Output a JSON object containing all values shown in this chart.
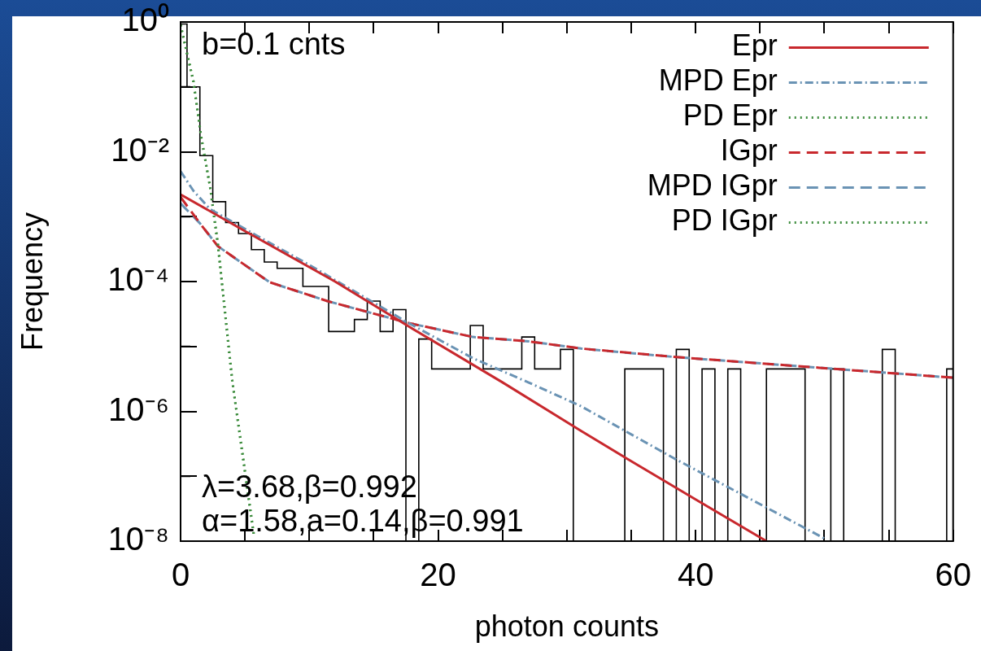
{
  "chart_data": {
    "type": "line",
    "xlabel": "photon counts",
    "ylabel": "Frequency",
    "log": true,
    "legend": "top right",
    "xlim": [
      0,
      60
    ],
    "ylim": [
      1e-08,
      1
    ],
    "xticks": [
      0,
      {
        "value": 5,
        "label": null
      },
      {
        "value": 10,
        "label": null
      },
      {
        "value": 15,
        "label": null
      },
      20,
      {
        "value": 25,
        "label": null
      },
      {
        "value": 30,
        "label": null
      },
      {
        "value": 35,
        "label": null
      },
      40,
      {
        "value": 45,
        "label": null
      },
      {
        "value": 50,
        "label": null
      },
      {
        "value": 55,
        "label": null
      },
      60
    ],
    "yticks": [
      {
        "value": 1e-08,
        "label": "10⁻⁸"
      },
      {
        "value": 1e-07,
        "label": null
      },
      {
        "value": 1e-06,
        "label": "10⁻⁶"
      },
      {
        "value": 1e-05,
        "label": null
      },
      {
        "value": 0.0001,
        "label": "10⁻⁴"
      },
      {
        "value": 0.001,
        "label": null
      },
      {
        "value": 0.01,
        "label": "10⁻²"
      },
      {
        "value": 0.1,
        "label": null
      },
      {
        "value": 1,
        "label": "10⁰"
      }
    ],
    "annotations": [
      "b=0.1 cnts",
      "λ=3.68,β=0.992",
      "α=1.58,a=0.14,β=0.991"
    ],
    "series": [
      {
        "type": "histogram",
        "color": "#000000",
        "bins": [
          0,
          0.5,
          1.5,
          2.5,
          3.5,
          4.5,
          5.5,
          6.5,
          7.5,
          8.5,
          9.5,
          10.5,
          11.5,
          12.5,
          13.5,
          14.5,
          15.5,
          16.5,
          17.5,
          18.5,
          19.5,
          20.5,
          21.5,
          22.5,
          23.5,
          24.5,
          25.5,
          26.5,
          27.5,
          28.5,
          29.5,
          30.5,
          31.5,
          32.5,
          33.5,
          34.5,
          35.5,
          36.5,
          37.5,
          38.5,
          39.5,
          40.5,
          41.5,
          42.5,
          43.5,
          44.5,
          45.5,
          46.5,
          47.5,
          48.5,
          49.5,
          50.5,
          51.5,
          52.5,
          53.5,
          54.5,
          55.5,
          56.5,
          57.5,
          58.5,
          59.5,
          60
        ],
        "values": [
          0.93,
          0.1,
          0.0087,
          0.0017,
          0.00081,
          0.00055,
          0.00031,
          0.0002,
          0.00016,
          0.00016,
          8.4e-05,
          8.4e-05,
          1.7e-05,
          1.7e-05,
          2.6e-05,
          5e-05,
          1.7e-05,
          3.7e-05,
          null,
          1.3e-05,
          4.5e-06,
          4.5e-06,
          4.5e-06,
          2.1e-05,
          4.5e-06,
          4.5e-06,
          4.5e-06,
          1.4e-05,
          4.5e-06,
          4.5e-06,
          9e-06,
          null,
          null,
          null,
          null,
          4.5e-06,
          4.5e-06,
          4.5e-06,
          null,
          9e-06,
          null,
          4.5e-06,
          null,
          4.5e-06,
          null,
          null,
          4.5e-06,
          4.5e-06,
          4.5e-06,
          null,
          null,
          4.5e-06,
          null,
          null,
          null,
          9e-06,
          null,
          null,
          null,
          null,
          4.5e-06
        ]
      },
      {
        "name": "Epr",
        "color": "#c8282d",
        "line_style": "solid",
        "x": [
          0,
          5,
          12,
          17.6,
          25,
          31.1,
          34.6,
          40,
          45.5
        ],
        "values": [
          0.0022,
          0.0006,
          0.0001,
          2.1e-05,
          2.8e-06,
          5e-07,
          1.9e-07,
          4.4e-08,
          1e-08
        ]
      },
      {
        "name": "MPD Epr",
        "color": "#6a93b4",
        "line_style": "dashdot",
        "x": [
          0,
          1,
          2.3,
          6,
          10,
          17.7,
          22.7,
          27,
          31.1,
          38.3,
          50
        ],
        "values": [
          0.005,
          0.0025,
          0.0013,
          0.0005,
          0.00018,
          2.3e-05,
          6.6e-06,
          2.8e-06,
          1.2e-06,
          1.9e-07,
          1.1e-08
        ]
      },
      {
        "name": "PD Epr",
        "color": "#3c8c3c",
        "line_style": "dotted",
        "x": [
          0,
          1,
          1.6,
          2.3,
          2.9,
          4,
          5.7
        ],
        "values": [
          0.9,
          0.12,
          0.017,
          0.0028,
          0.00037,
          3.1e-06,
          1.2e-08
        ]
      },
      {
        "name": "IGpr",
        "color": "#c8282d",
        "line_style": "dashed",
        "x": [
          0,
          1.5,
          2.9,
          6.9,
          11.4,
          17.7,
          22.7,
          27,
          31.1,
          38.3,
          49.6,
          60
        ],
        "values": [
          0.002,
          0.00079,
          0.00035,
          9.8e-05,
          5e-05,
          2.3e-05,
          1.4e-05,
          1.2e-05,
          9.3e-06,
          6.9e-06,
          4.7e-06,
          3.3e-06
        ]
      },
      {
        "name": "MPD IGpr",
        "color": "#6a93b4",
        "line_style": "dashed",
        "x": [
          0,
          1.5,
          2.9,
          6.9,
          11.4,
          17.7,
          22.7,
          27,
          31.1,
          38.3,
          49.6,
          60
        ],
        "values": [
          0.0016,
          0.00079,
          0.00035,
          9.8e-05,
          5e-05,
          2.3e-05,
          1.4e-05,
          1.2e-05,
          9.3e-06,
          6.9e-06,
          4.7e-06,
          3.3e-06
        ]
      },
      {
        "name": "PD IGpr",
        "color": "#3c8c3c",
        "line_style": "dotted",
        "x": [
          0,
          1,
          1.6,
          2.3,
          2.9,
          4,
          5.7
        ],
        "values": [
          0.9,
          0.12,
          0.017,
          0.0028,
          0.00037,
          3.1e-06,
          1.2e-08
        ]
      }
    ]
  }
}
